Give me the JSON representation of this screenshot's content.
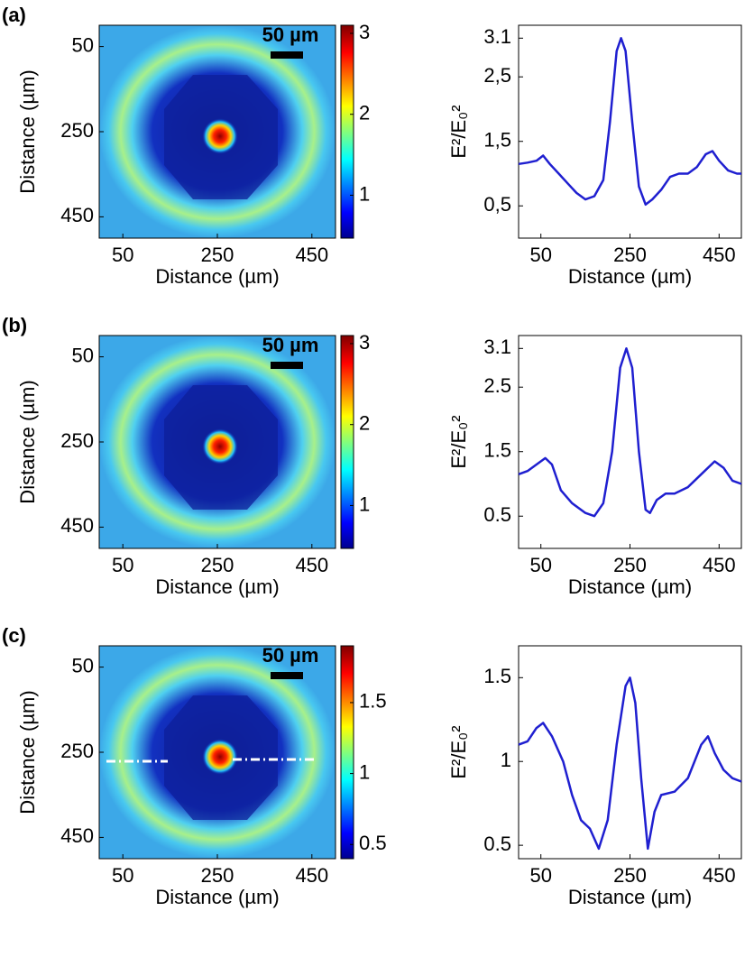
{
  "chart_data": [
    {
      "type": "heatmap",
      "panel_label": "(a)",
      "xlabel": "Distance (µm)",
      "ylabel": "Distance (µm)",
      "xlim": [
        0,
        500
      ],
      "xticks": [
        50,
        250,
        450
      ],
      "ylim": [
        0,
        500
      ],
      "yticks": [
        50,
        250,
        450
      ],
      "y_inverted": true,
      "clim": [
        0.47,
        3.1
      ],
      "cticks": [
        1,
        2,
        3
      ],
      "scale_bar_label": "50 µm"
    },
    {
      "type": "line",
      "xlabel": "Distance (µm)",
      "ylabel": "E²/E₀²",
      "x": [
        0,
        20,
        40,
        55,
        70,
        90,
        110,
        130,
        150,
        170,
        190,
        205,
        220,
        230,
        240,
        255,
        270,
        285,
        300,
        320,
        340,
        360,
        380,
        400,
        420,
        435,
        450,
        470,
        490,
        500
      ],
      "series": [
        {
          "color": "#1f1fd0",
          "values": [
            1.15,
            1.17,
            1.2,
            1.28,
            1.15,
            1.0,
            0.85,
            0.7,
            0.6,
            0.65,
            0.9,
            1.8,
            2.9,
            3.1,
            2.9,
            1.8,
            0.8,
            0.52,
            0.6,
            0.75,
            0.95,
            1.0,
            1.0,
            1.1,
            1.3,
            1.35,
            1.2,
            1.05,
            1.0,
            1.0
          ]
        }
      ],
      "xlim": [
        0,
        500
      ],
      "xticks": [
        50,
        250,
        450
      ],
      "ylim": [
        0,
        3.3
      ],
      "yticks": [
        {
          "value": 0.5,
          "label": "0,5"
        },
        {
          "value": 1.5,
          "label": "1,5"
        },
        {
          "value": 2.5,
          "label": "2,5"
        },
        3.1
      ]
    },
    {
      "type": "heatmap",
      "panel_label": "(b)",
      "xlabel": "Distance (µm)",
      "ylabel": "Distance (µm)",
      "xlim": [
        0,
        500
      ],
      "xticks": [
        50,
        250,
        450
      ],
      "ylim": [
        0,
        500
      ],
      "yticks": [
        50,
        250,
        450
      ],
      "y_inverted": true,
      "clim": [
        0.47,
        3.1
      ],
      "cticks": [
        1,
        2,
        3
      ],
      "scale_bar_label": "50 µm"
    },
    {
      "type": "line",
      "xlabel": "Distance (µm)",
      "ylabel": "E²/E₀²",
      "x": [
        0,
        20,
        40,
        60,
        75,
        95,
        120,
        150,
        170,
        190,
        210,
        228,
        242,
        255,
        270,
        285,
        295,
        310,
        330,
        350,
        380,
        410,
        440,
        460,
        480,
        500
      ],
      "series": [
        {
          "color": "#1f1fd0",
          "values": [
            1.15,
            1.2,
            1.3,
            1.4,
            1.3,
            0.9,
            0.7,
            0.55,
            0.5,
            0.7,
            1.5,
            2.8,
            3.1,
            2.8,
            1.5,
            0.6,
            0.55,
            0.75,
            0.85,
            0.85,
            0.95,
            1.15,
            1.35,
            1.25,
            1.05,
            1.0
          ]
        }
      ],
      "xlim": [
        0,
        500
      ],
      "xticks": [
        50,
        250,
        450
      ],
      "ylim": [
        0,
        3.3
      ],
      "yticks": [
        0.5,
        1.5,
        2.5,
        3.1
      ]
    },
    {
      "type": "heatmap",
      "panel_label": "(c)",
      "xlabel": "Distance (µm)",
      "ylabel": "Distance (µm)",
      "xlim": [
        0,
        500
      ],
      "xticks": [
        50,
        250,
        450
      ],
      "ylim": [
        0,
        500
      ],
      "yticks": [
        50,
        250,
        450
      ],
      "y_inverted": true,
      "clim": [
        0.4,
        1.9
      ],
      "cticks": [
        0.5,
        1,
        1.5
      ],
      "scale_bar_label": "50 µm"
    },
    {
      "type": "line",
      "xlabel": "Distance (µm)",
      "ylabel": "E²/E₀²",
      "x": [
        0,
        20,
        40,
        55,
        75,
        100,
        120,
        140,
        160,
        180,
        200,
        220,
        240,
        250,
        262,
        275,
        290,
        305,
        320,
        350,
        380,
        410,
        425,
        440,
        460,
        480,
        500
      ],
      "series": [
        {
          "color": "#1f1fd0",
          "values": [
            1.1,
            1.12,
            1.2,
            1.23,
            1.15,
            1.0,
            0.8,
            0.65,
            0.6,
            0.48,
            0.65,
            1.1,
            1.45,
            1.5,
            1.35,
            0.9,
            0.48,
            0.7,
            0.8,
            0.82,
            0.9,
            1.1,
            1.15,
            1.05,
            0.95,
            0.9,
            0.88
          ]
        }
      ],
      "xlim": [
        0,
        500
      ],
      "xticks": [
        50,
        250,
        450
      ],
      "ylim": [
        0.42,
        1.69
      ],
      "yticks": [
        0.5,
        1,
        1.5
      ]
    }
  ]
}
